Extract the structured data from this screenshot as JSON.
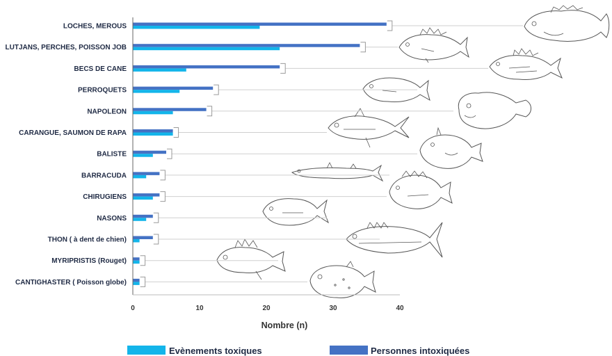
{
  "chart_data": {
    "type": "bar",
    "orientation": "horizontal",
    "title": "",
    "xlabel": "Nombre (n)",
    "ylabel": "",
    "xlim": [
      0,
      40
    ],
    "xticks": [
      "0",
      "10",
      "20",
      "30",
      "40"
    ],
    "categories": [
      "LOCHES, MEROUS",
      "LUTJANS, PERCHES, POISSON JOB",
      "BECS DE CANE",
      "PERROQUETS",
      "NAPOLEON",
      "CARANGUE, SAUMON DE RAPA",
      "BALISTE",
      "BARRACUDA",
      "CHIRUGIENS",
      "NASONS",
      "THON ( à dent de chien)",
      "MYRIPRISTIS (Rouget)",
      "CANTIGHASTER ( Poisson globe)"
    ],
    "series": [
      {
        "name": "Personnes intoxiquées",
        "color": "#4472c4",
        "values": [
          38,
          34,
          22,
          12,
          11,
          6,
          5,
          4,
          4,
          3,
          3,
          1,
          1
        ]
      },
      {
        "name": "Evènements toxiques",
        "color": "#13b5ea",
        "values": [
          19,
          22,
          8,
          7,
          6,
          6,
          3,
          2,
          3,
          2,
          1,
          1,
          1
        ]
      }
    ],
    "grid": false,
    "legend_position": "bottom",
    "decorations": "fish line drawings linked to each category by leader lines"
  }
}
